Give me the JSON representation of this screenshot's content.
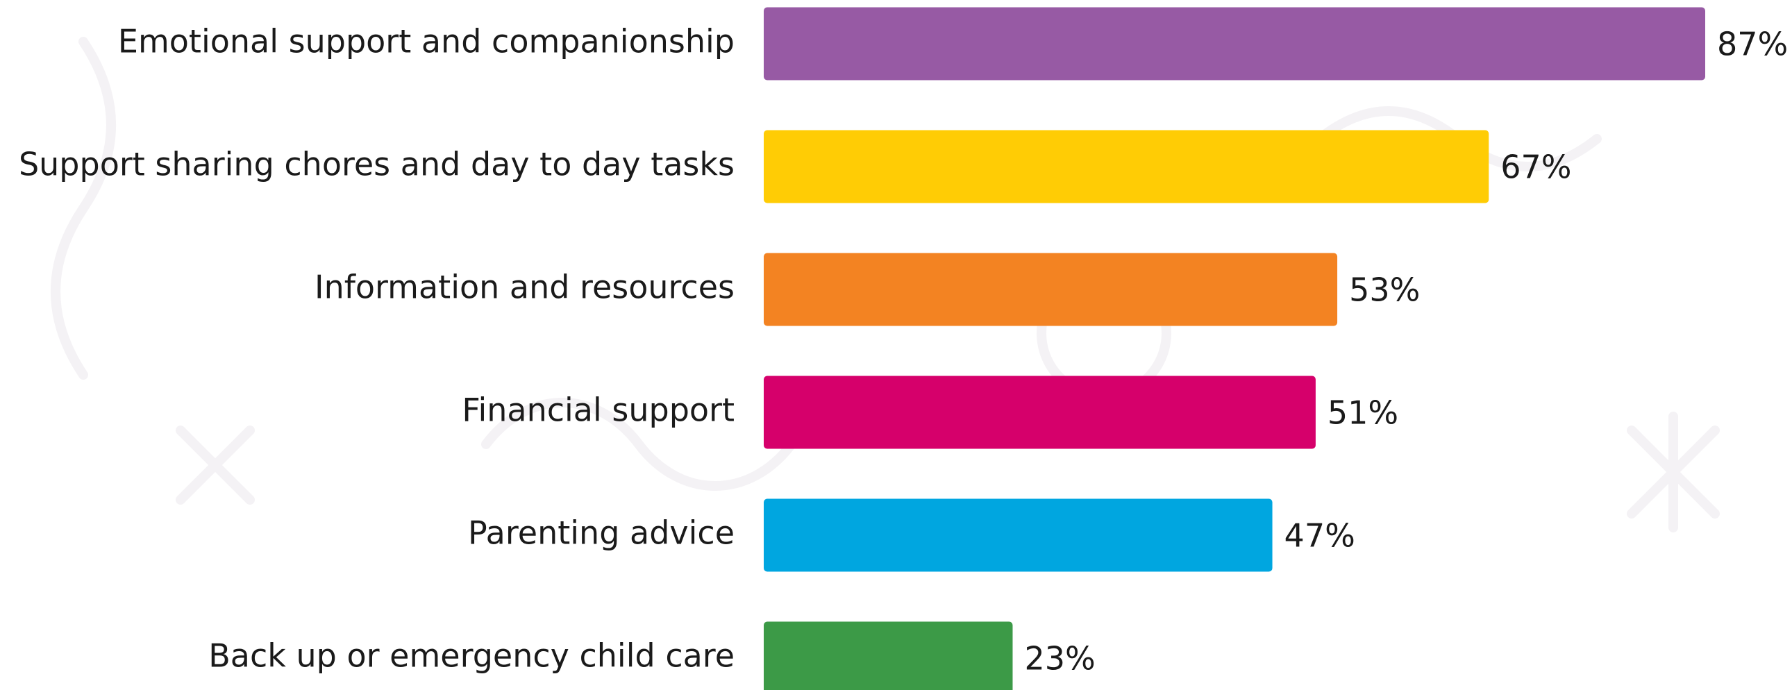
{
  "chart_data": {
    "type": "bar",
    "orientation": "horizontal",
    "categories": [
      "Emotional support and companionship",
      "Support sharing chores and day to day tasks",
      "Information and resources",
      "Financial support",
      "Parenting advice",
      "Back up or emergency child care"
    ],
    "values": [
      87,
      67,
      53,
      51,
      47,
      23
    ],
    "value_labels": [
      "87%",
      "67%",
      "53%",
      "51%",
      "47%",
      "23%"
    ],
    "colors": [
      "#975aa4",
      "#ffcc05",
      "#f38322",
      "#d6006b",
      "#00a6e0",
      "#3c9a47"
    ]
  }
}
